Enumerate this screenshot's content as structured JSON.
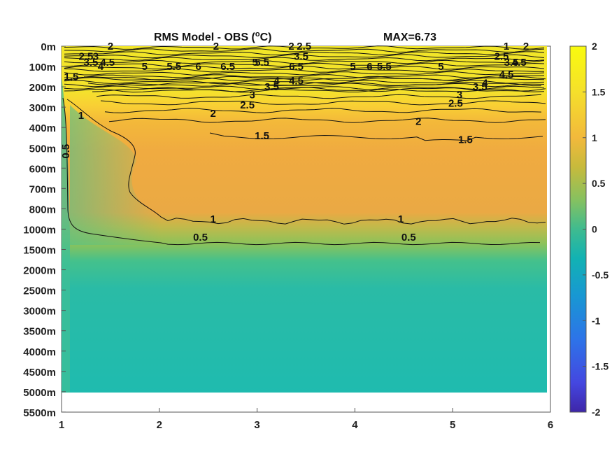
{
  "chart_data": {
    "type": "heatmap",
    "title": "RMS Model - OBS (",
    "title_superscript": "o",
    "title_unit": "C)",
    "max_label": "MAX=6.73",
    "xlim": [
      1,
      6
    ],
    "x_ticks": [
      "1",
      "2",
      "3",
      "4",
      "5",
      "6"
    ],
    "y_ticks": [
      "0m",
      "100m",
      "200m",
      "300m",
      "400m",
      "500m",
      "600m",
      "700m",
      "800m",
      "1000m",
      "1500m",
      "2000m",
      "2500m",
      "3000m",
      "3500m",
      "4000m",
      "4500m",
      "5000m",
      "5500m"
    ],
    "colorbar": {
      "range": [
        -2,
        2
      ],
      "ticks": [
        "2",
        "1.5",
        "1",
        "0.5",
        "0",
        "-0.5",
        "-1",
        "-1.5",
        "-2"
      ],
      "colormap": "parula"
    },
    "contour_levels": [
      0.5,
      1,
      1.5,
      2,
      2.5,
      3,
      3.5,
      4,
      4.5,
      5,
      5.5,
      6,
      6.5
    ],
    "contour_labels": [
      {
        "text": "2",
        "x": 1.5,
        "depth": "0m"
      },
      {
        "text": "2.5",
        "x": 1.25,
        "depth": "50m"
      },
      {
        "text": "3",
        "x": 1.35,
        "depth": "50m"
      },
      {
        "text": "3.5",
        "x": 1.3,
        "depth": "80m"
      },
      {
        "text": "4",
        "x": 1.4,
        "depth": "100m"
      },
      {
        "text": "4.5",
        "x": 1.47,
        "depth": "80m"
      },
      {
        "text": "1.5",
        "x": 1.1,
        "depth": "150m"
      },
      {
        "text": "2",
        "x": 2.58,
        "depth": "0m"
      },
      {
        "text": "5",
        "x": 1.85,
        "depth": "100m"
      },
      {
        "text": "5.5",
        "x": 2.15,
        "depth": "100m"
      },
      {
        "text": "6",
        "x": 2.4,
        "depth": "100m"
      },
      {
        "text": "6.5",
        "x": 2.7,
        "depth": "100m"
      },
      {
        "text": "5",
        "x": 2.98,
        "depth": "80m"
      },
      {
        "text": "5.5",
        "x": 3.05,
        "depth": "80m"
      },
      {
        "text": "2",
        "x": 3.35,
        "depth": "0m"
      },
      {
        "text": "2.5",
        "x": 3.48,
        "depth": "0m"
      },
      {
        "text": "3.5",
        "x": 3.45,
        "depth": "50m"
      },
      {
        "text": "6.5",
        "x": 3.4,
        "depth": "100m"
      },
      {
        "text": "4.5",
        "x": 3.4,
        "depth": "170m"
      },
      {
        "text": "4",
        "x": 3.2,
        "depth": "170m"
      },
      {
        "text": "3.5",
        "x": 3.15,
        "depth": "200m"
      },
      {
        "text": "3",
        "x": 2.95,
        "depth": "240m"
      },
      {
        "text": "2.5",
        "x": 2.9,
        "depth": "290m"
      },
      {
        "text": "2",
        "x": 2.55,
        "depth": "330m"
      },
      {
        "text": "1.5",
        "x": 3.05,
        "depth": "440m"
      },
      {
        "text": "1",
        "x": 1.2,
        "depth": "340m"
      },
      {
        "text": "0.5",
        "x": 1.08,
        "depth": "500m"
      },
      {
        "text": "5",
        "x": 3.98,
        "depth": "100m"
      },
      {
        "text": "6",
        "x": 4.15,
        "depth": "100m"
      },
      {
        "text": "5.5",
        "x": 4.3,
        "depth": "100m"
      },
      {
        "text": "5",
        "x": 4.88,
        "depth": "100m"
      },
      {
        "text": "1",
        "x": 5.55,
        "depth": "0m"
      },
      {
        "text": "2",
        "x": 5.75,
        "depth": "0m"
      },
      {
        "text": "2.5",
        "x": 5.5,
        "depth": "50m"
      },
      {
        "text": "3.5",
        "x": 5.6,
        "depth": "80m"
      },
      {
        "text": "4.5",
        "x": 5.68,
        "depth": "80m"
      },
      {
        "text": "4",
        "x": 5.33,
        "depth": "180m"
      },
      {
        "text": "4.5",
        "x": 5.55,
        "depth": "140m"
      },
      {
        "text": "3.5",
        "x": 5.28,
        "depth": "200m"
      },
      {
        "text": "3",
        "x": 5.07,
        "depth": "240m"
      },
      {
        "text": "2.5",
        "x": 5.03,
        "depth": "280m"
      },
      {
        "text": "2",
        "x": 4.65,
        "depth": "370m"
      },
      {
        "text": "1.5",
        "x": 5.13,
        "depth": "460m"
      },
      {
        "text": "1",
        "x": 2.55,
        "depth": "900m"
      },
      {
        "text": "1",
        "x": 4.47,
        "depth": "900m"
      },
      {
        "text": "0.5",
        "x": 2.42,
        "depth": "1200m"
      },
      {
        "text": "0.5",
        "x": 4.55,
        "depth": "1200m"
      }
    ]
  }
}
